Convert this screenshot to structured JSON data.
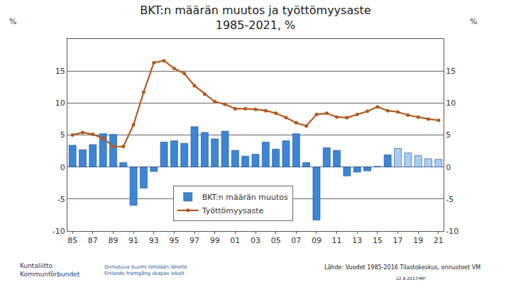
{
  "chart_data": {
    "type": "bar",
    "title": [
      "BKT:n määrän muutos ja työttömyysaste",
      "1985-2021, %"
    ],
    "ylabel": "%",
    "y2label": "%",
    "categories": [
      "85",
      null,
      "87",
      null,
      "89",
      null,
      "91",
      null,
      "93",
      null,
      "95",
      null,
      "97",
      null,
      "99",
      null,
      "01",
      null,
      "03",
      null,
      "05",
      null,
      "07",
      null,
      "09",
      null,
      "11",
      null,
      "13",
      null,
      "15",
      null,
      "17",
      null,
      "19",
      null,
      "21"
    ],
    "series": [
      {
        "name": "BKT:n määrän muutos",
        "type": "bar",
        "colors": [
          "#3d85d6",
          "#3d85d6",
          "#3d85d6",
          "#3d85d6",
          "#3d85d6",
          "#3d85d6",
          "#3d85d6",
          "#3d85d6",
          "#3d85d6",
          "#3d85d6",
          "#3d85d6",
          "#3d85d6",
          "#3d85d6",
          "#3d85d6",
          "#3d85d6",
          "#3d85d6",
          "#3d85d6",
          "#3d85d6",
          "#3d85d6",
          "#3d85d6",
          "#3d85d6",
          "#3d85d6",
          "#3d85d6",
          "#3d85d6",
          "#3d85d6",
          "#3d85d6",
          "#3d85d6",
          "#3d85d6",
          "#3d85d6",
          "#3d85d6",
          "#3d85d6",
          "#3d85d6",
          "#a9cdf2",
          "#a9cdf2",
          "#a9cdf2",
          "#a9cdf2",
          "#a9cdf2"
        ],
        "values": [
          3.4,
          2.7,
          3.5,
          5.2,
          5.1,
          0.7,
          -6.0,
          -3.3,
          -0.7,
          3.9,
          4.1,
          3.7,
          6.3,
          5.4,
          4.4,
          5.6,
          2.6,
          1.7,
          2.0,
          3.9,
          2.8,
          4.1,
          5.2,
          0.7,
          -8.3,
          3.0,
          2.6,
          -1.4,
          -0.8,
          -0.6,
          0.1,
          1.9,
          2.9,
          2.2,
          1.8,
          1.3,
          1.2
        ]
      },
      {
        "name": "Työttömyysaste",
        "type": "line",
        "color": "#b05a1e",
        "marker": "circle",
        "axis": "y2",
        "values": [
          5.0,
          5.4,
          5.1,
          4.5,
          3.2,
          3.2,
          6.6,
          11.7,
          16.3,
          16.6,
          15.4,
          14.6,
          12.7,
          11.4,
          10.2,
          9.8,
          9.1,
          9.1,
          9.0,
          8.8,
          8.4,
          7.7,
          6.9,
          6.4,
          8.2,
          8.4,
          7.8,
          7.7,
          8.2,
          8.7,
          9.4,
          8.8,
          8.6,
          8.1,
          7.8,
          7.5,
          7.3
        ]
      }
    ],
    "ylim": [
      -10,
      20
    ],
    "yticks": [
      -10,
      -5,
      0,
      5,
      10,
      15
    ],
    "y2lim": [
      -10,
      20
    ],
    "y2ticks": [
      -10,
      -5,
      0,
      5,
      10,
      15
    ],
    "grid": true,
    "legend": "bottom"
  },
  "footer": {
    "logo": [
      "Kuntaliitto",
      "Kommunförbundet"
    ],
    "slogan": [
      "Onnistuva Suomi tehdään lähellä",
      "Finlands framgång skapas lokalt"
    ],
    "source": "Lähde: Vuodet 1985-2016 Tilastokeskus, ennusteet VM",
    "date": "22.9.2017/MP"
  }
}
